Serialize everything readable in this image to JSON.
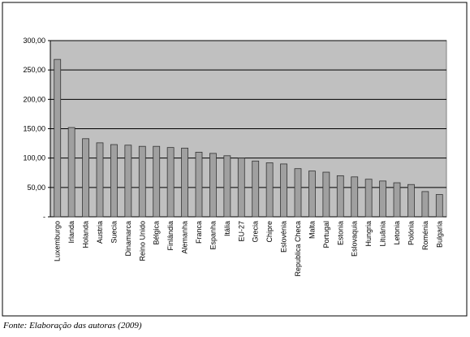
{
  "chart_data": {
    "type": "bar",
    "categories": [
      "Luxemburgo",
      "Irlanda",
      "Holanda",
      "Austria",
      "Suecia",
      "Dinamarca",
      "Reino Unido",
      "Bélgica",
      "Finlândia",
      "Alemanha",
      "Franca",
      "Espanha",
      "Itália",
      "EU-27",
      "Grecia",
      "Chipre",
      "Eslovénia",
      "Republica Checa",
      "Malta",
      "Portugal",
      "Estonia",
      "Eslovaquia",
      "Hungria",
      "Lituânia",
      "Letonia",
      "Polónia",
      "Roménia",
      "Bulgaria"
    ],
    "values": [
      268,
      152,
      133,
      126,
      123,
      122,
      120,
      120,
      118,
      117,
      110,
      108,
      104,
      100,
      95,
      92,
      90,
      82,
      78,
      76,
      70,
      68,
      64,
      61,
      58,
      55,
      43,
      38
    ],
    "color": "#a0a0a0",
    "ylim": [
      0,
      300
    ],
    "yticks": [
      {
        "value": 0,
        "label": "-"
      },
      {
        "value": 50,
        "label": "50,00"
      },
      {
        "value": 100,
        "label": "100,00"
      },
      {
        "value": 150,
        "label": "150,00"
      },
      {
        "value": 200,
        "label": "200,00"
      },
      {
        "value": 250,
        "label": "250,00"
      },
      {
        "value": 300,
        "label": "300,00"
      }
    ],
    "grid": true,
    "source": "Fonte: Elaboração das autoras (2009)"
  }
}
